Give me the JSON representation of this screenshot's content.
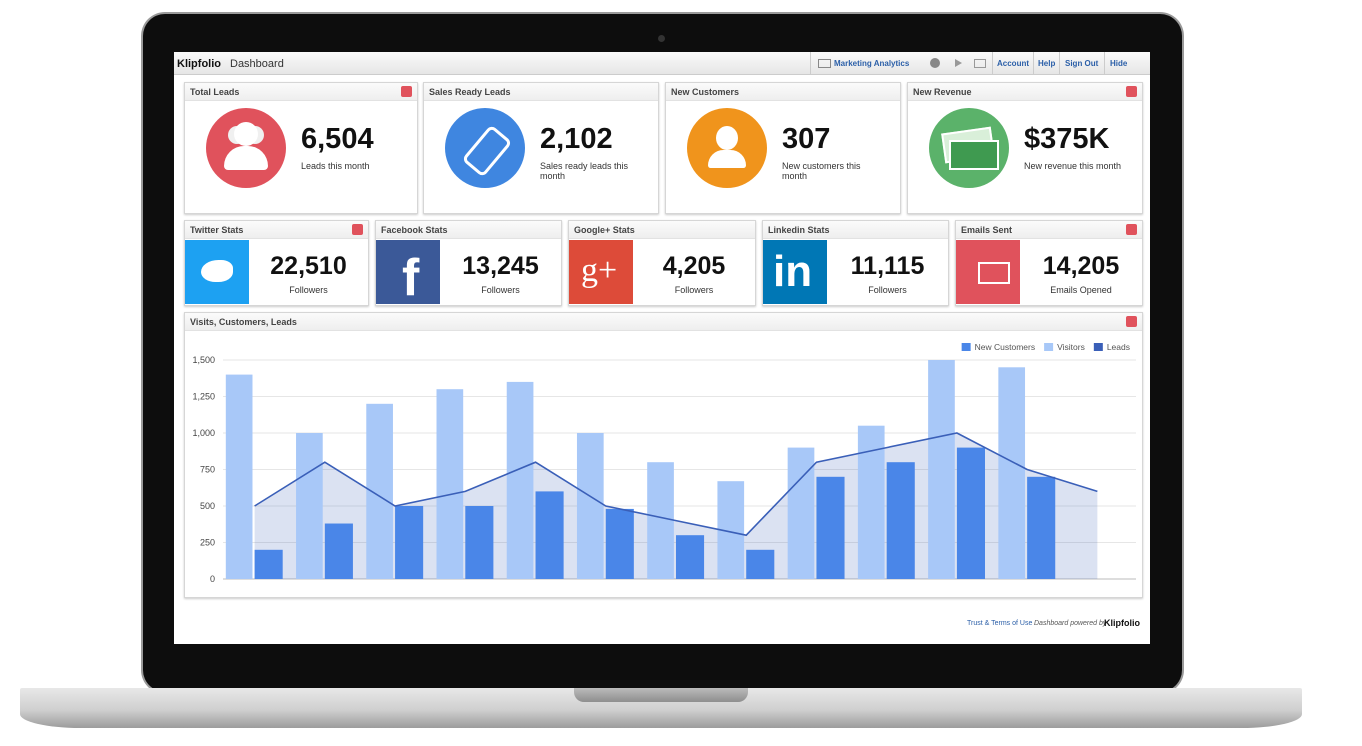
{
  "header": {
    "brand": "Klipfolio",
    "product": "Dashboard",
    "tab": "Marketing Analytics",
    "links": [
      "Account",
      "Help",
      "Sign Out",
      "Hide"
    ]
  },
  "kpis": [
    {
      "title": "Total Leads",
      "value": "6,504",
      "caption": "Leads this month"
    },
    {
      "title": "Sales Ready Leads",
      "value": "2,102",
      "caption": "Sales ready leads this month"
    },
    {
      "title": "New Customers",
      "value": "307",
      "caption": "New customers this month"
    },
    {
      "title": "New Revenue",
      "value": "$375K",
      "caption": "New revenue this month"
    }
  ],
  "social": [
    {
      "title": "Twitter Stats",
      "value": "22,510",
      "caption": "Followers"
    },
    {
      "title": "Facebook Stats",
      "value": "13,245",
      "caption": "Followers"
    },
    {
      "title": "Google+ Stats",
      "value": "4,205",
      "caption": "Followers"
    },
    {
      "title": "Linkedin Stats",
      "value": "11,115",
      "caption": "Followers"
    },
    {
      "title": "Emails Sent",
      "value": "14,205",
      "caption": "Emails Opened"
    }
  ],
  "chart_data": {
    "type": "bar",
    "title": "Visits, Customers, Leads",
    "categories": [
      null,
      null,
      null,
      null,
      null,
      null,
      null,
      null,
      null,
      null,
      null,
      null,
      null
    ],
    "series": [
      {
        "name": "New Customers",
        "type": "bar",
        "color": "#4a86e8",
        "values": [
          200,
          380,
          500,
          500,
          600,
          480,
          300,
          200,
          700,
          800,
          900,
          700,
          null
        ]
      },
      {
        "name": "Visitors",
        "type": "bar",
        "color": "#a8c8f8",
        "values": [
          1400,
          1000,
          1200,
          1300,
          1350,
          1000,
          800,
          670,
          900,
          1050,
          1500,
          1450,
          null
        ]
      },
      {
        "name": "Leads",
        "type": "area",
        "color": "#3a5fb8",
        "values": [
          500,
          800,
          500,
          600,
          800,
          500,
          400,
          300,
          800,
          900,
          1000,
          750,
          600
        ]
      }
    ],
    "ylim": [
      0,
      1500
    ],
    "yticks": [
      0,
      250,
      500,
      750,
      {
        "value": 1000,
        "label": "1,000"
      },
      {
        "value": 1250,
        "label": "1,250"
      },
      {
        "value": 1500,
        "label": "1,500"
      }
    ],
    "grid": true,
    "legend": "top-right"
  },
  "footer": {
    "terms": "Trust & Terms of Use",
    "powered": "Dashboard powered by",
    "brand": "Klipfolio"
  }
}
